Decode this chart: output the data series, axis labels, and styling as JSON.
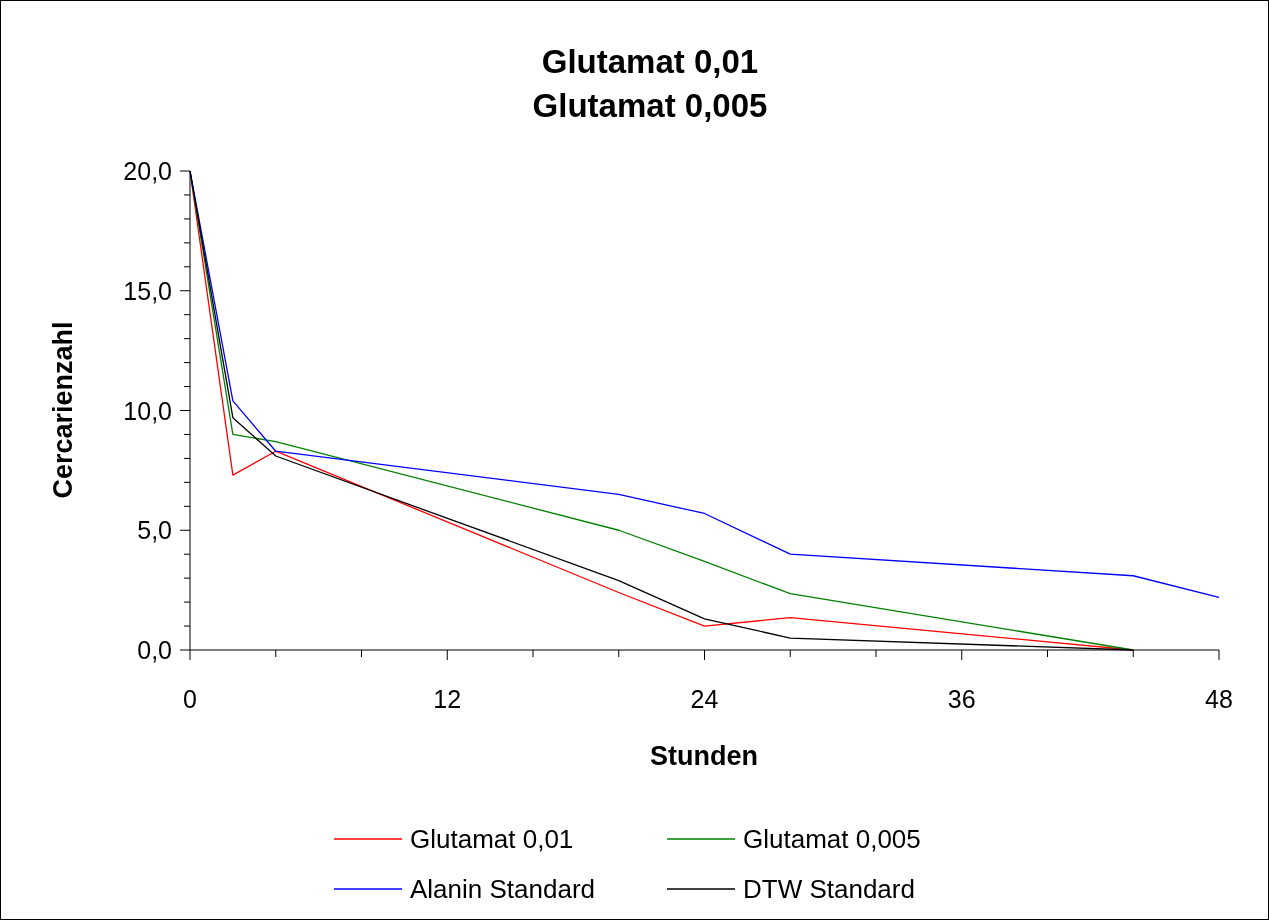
{
  "chart_data": {
    "type": "line",
    "title": "Glutamat 0,01\nGlutamat 0,005",
    "xlabel": "Stunden",
    "ylabel": "Cercarienzahl",
    "x": [
      0,
      2,
      4,
      20,
      24,
      28,
      44
    ],
    "series": [
      {
        "name": "Glutamat 0,01",
        "color": "#ff0000",
        "values": [
          20,
          7.3,
          8.3,
          2.4,
          1.0,
          1.35,
          0
        ]
      },
      {
        "name": "Glutamat 0,005",
        "color": "#008000",
        "values": [
          20,
          9.0,
          8.7,
          5.0,
          3.7,
          2.35,
          0
        ]
      },
      {
        "name": "Alanin Standard",
        "color": "#0000ff",
        "x": [
          0,
          2,
          4,
          20,
          24,
          28,
          44,
          48
        ],
        "values": [
          20,
          10.4,
          8.3,
          6.5,
          5.7,
          4.0,
          3.1,
          2.2
        ]
      },
      {
        "name": "DTW Standard",
        "color": "#000000",
        "values": [
          20,
          9.7,
          8.1,
          2.9,
          1.3,
          0.5,
          0
        ]
      }
    ],
    "xlim": [
      0,
      48
    ],
    "xticks": [
      0,
      {
        "value": 4,
        "label": null
      },
      {
        "value": 8,
        "label": null
      },
      12,
      {
        "value": 16,
        "label": null
      },
      {
        "value": 20,
        "label": null
      },
      24,
      {
        "value": 28,
        "label": null
      },
      {
        "value": 32,
        "label": null
      },
      36,
      {
        "value": 40,
        "label": null
      },
      {
        "value": 44,
        "label": null
      },
      48
    ],
    "ylim": [
      0,
      20
    ],
    "yticks": [
      {
        "value": 0,
        "label": "0,0"
      },
      {
        "value": 1,
        "label": null
      },
      {
        "value": 2,
        "label": null
      },
      {
        "value": 3,
        "label": null
      },
      {
        "value": 4,
        "label": null
      },
      {
        "value": 5,
        "label": "5,0"
      },
      {
        "value": 6,
        "label": null
      },
      {
        "value": 7,
        "label": null
      },
      {
        "value": 8,
        "label": null
      },
      {
        "value": 9,
        "label": null
      },
      {
        "value": 10,
        "label": "10,0"
      },
      {
        "value": 11,
        "label": null
      },
      {
        "value": 12,
        "label": null
      },
      {
        "value": 13,
        "label": null
      },
      {
        "value": 14,
        "label": null
      },
      {
        "value": 15,
        "label": "15,0"
      },
      {
        "value": 16,
        "label": null
      },
      {
        "value": 17,
        "label": null
      },
      {
        "value": 18,
        "label": null
      },
      {
        "value": 19,
        "label": null
      },
      {
        "value": 20,
        "label": "20,0"
      }
    ],
    "grid": false,
    "legend": "bottom",
    "marker": "none",
    "line_style": "solid"
  }
}
